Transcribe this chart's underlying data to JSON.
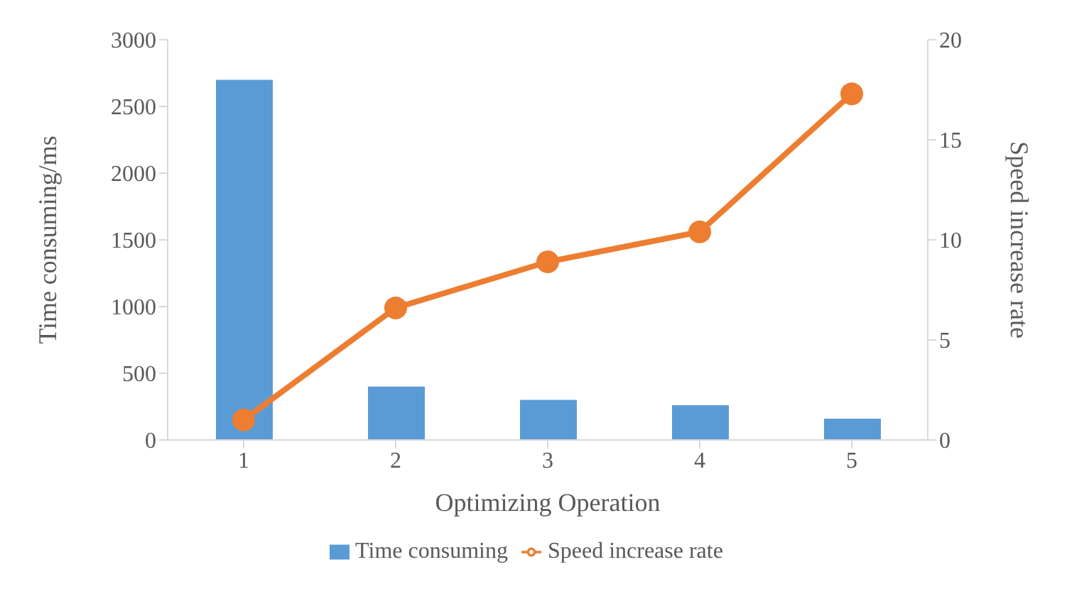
{
  "chart_data": {
    "type": "bar",
    "xlabel": "Optimizing Operation",
    "ylabel": "Time consuming/ms",
    "y2label": "Speed increase rate",
    "categories": [
      "1",
      "2",
      "3",
      "4",
      "5"
    ],
    "series": [
      {
        "name": "Time consuming",
        "color": "#5b9bd5",
        "values": [
          2700,
          400,
          300,
          260,
          160
        ]
      },
      {
        "name": "Speed increase rate",
        "type": "line",
        "axis": "y2",
        "color": "#ed7d31",
        "values": [
          1,
          6.6,
          8.9,
          10.4,
          17.3
        ]
      }
    ],
    "ylim": [
      0,
      3000
    ],
    "yticks": [
      0,
      500,
      1000,
      1500,
      2000,
      2500,
      3000
    ],
    "y2lim": [
      0,
      20
    ],
    "y2ticks": [
      0,
      5,
      10,
      15,
      20
    ],
    "grid": false,
    "legend": "bottom",
    "marker": "circle"
  }
}
